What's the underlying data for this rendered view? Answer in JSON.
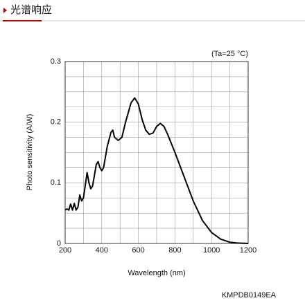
{
  "header": {
    "title": "光谱响应"
  },
  "chart_data": {
    "type": "line",
    "annotation": "(Ta=25 °C)",
    "xlabel": "Wavelength (nm)",
    "ylabel": "Photo sensitivity (A/W)",
    "code": "KMPDB0149EA",
    "xlim": [
      200,
      1200
    ],
    "ylim": [
      0,
      0.3
    ],
    "xticks": [
      200,
      400,
      600,
      800,
      1000,
      1200
    ],
    "yticks": [
      0,
      0.1,
      0.2,
      0.3
    ],
    "xgrid": [
      300,
      500,
      700,
      900,
      1100
    ],
    "ygrid": [
      0.025,
      0.05,
      0.075,
      0.125,
      0.15,
      0.175,
      0.225,
      0.25,
      0.275
    ],
    "grid": true,
    "series": [
      {
        "color": "#000000",
        "x": [
          200,
          210,
          220,
          230,
          240,
          250,
          260,
          270,
          280,
          290,
          300,
          320,
          330,
          340,
          350,
          370,
          380,
          390,
          400,
          410,
          430,
          450,
          460,
          470,
          490,
          510,
          530,
          560,
          580,
          600,
          620,
          640,
          660,
          680,
          700,
          720,
          740,
          760,
          800,
          850,
          900,
          950,
          1000,
          1050,
          1100,
          1150,
          1200
        ],
        "values": [
          0.055,
          0.057,
          0.055,
          0.065,
          0.055,
          0.066,
          0.055,
          0.06,
          0.08,
          0.07,
          0.075,
          0.117,
          0.1,
          0.09,
          0.095,
          0.13,
          0.135,
          0.125,
          0.12,
          0.125,
          0.16,
          0.183,
          0.187,
          0.175,
          0.17,
          0.175,
          0.2,
          0.232,
          0.24,
          0.23,
          0.205,
          0.187,
          0.18,
          0.182,
          0.193,
          0.198,
          0.193,
          0.18,
          0.15,
          0.11,
          0.07,
          0.038,
          0.018,
          0.007,
          0.002,
          0.0005,
          0
        ]
      }
    ]
  }
}
